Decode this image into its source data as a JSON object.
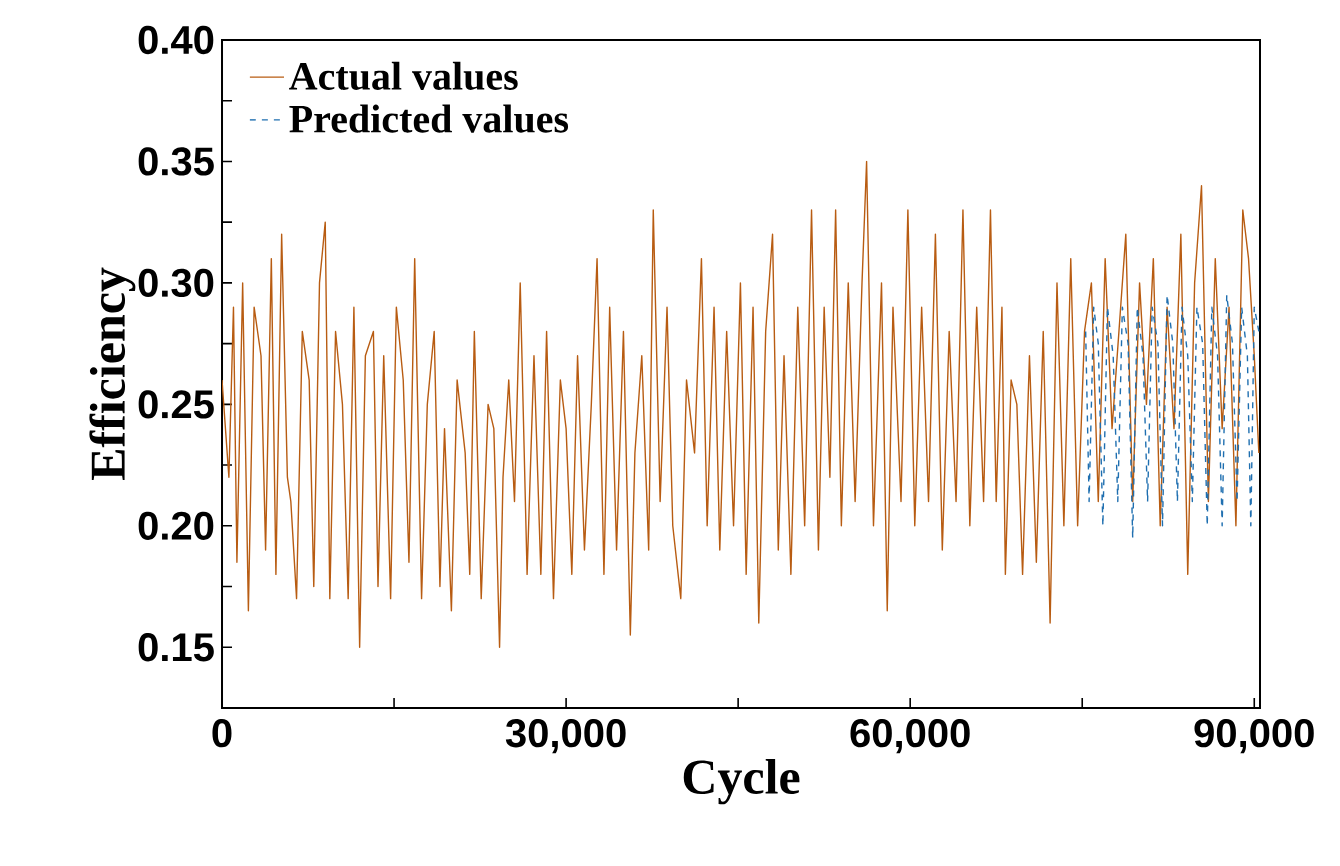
{
  "chart_data": {
    "type": "line",
    "xlabel": "Cycle",
    "ylabel": "Efficiency",
    "xlim": [
      0,
      90500
    ],
    "ylim": [
      0.125,
      0.4
    ],
    "xticks": [
      {
        "value": 0,
        "label": "0"
      },
      {
        "value": 15000,
        "label": null
      },
      {
        "value": 30000,
        "label": "30,000"
      },
      {
        "value": 45000,
        "label": null
      },
      {
        "value": 60000,
        "label": "60,000"
      },
      {
        "value": 75000,
        "label": null
      },
      {
        "value": 90000,
        "label": "90,000"
      }
    ],
    "yticks": [
      0.15,
      {
        "value": 0.175,
        "label": null
      },
      {
        "value": 0.2,
        "label": "0.20"
      },
      {
        "value": 0.225,
        "label": null
      },
      0.25,
      {
        "value": 0.275,
        "label": null
      },
      {
        "value": 0.3,
        "label": "0.30"
      },
      {
        "value": 0.325,
        "label": null
      },
      0.35,
      {
        "value": 0.375,
        "label": null
      },
      {
        "value": 0.4,
        "label": "0.40"
      }
    ],
    "legend": "top left",
    "series": [
      {
        "name": "Actual values",
        "color": "#b85c12",
        "line_style": "solid",
        "x": [
          0,
          600,
          1000,
          1300,
          1800,
          2300,
          2800,
          3400,
          3800,
          4300,
          4700,
          5200,
          5700,
          6000,
          6500,
          7000,
          7600,
          8000,
          8500,
          9000,
          9400,
          9900,
          10500,
          11000,
          11500,
          12000,
          12500,
          13200,
          13600,
          14100,
          14700,
          15200,
          15800,
          16300,
          16800,
          17400,
          17900,
          18500,
          19000,
          19400,
          20000,
          20500,
          21200,
          21600,
          22000,
          22600,
          23200,
          23700,
          24200,
          24500,
          25000,
          25500,
          26000,
          26600,
          27200,
          27800,
          28300,
          28900,
          29500,
          30000,
          30500,
          31000,
          31600,
          32200,
          32700,
          33300,
          33800,
          34400,
          35000,
          35600,
          36000,
          36600,
          37200,
          37600,
          38200,
          38800,
          39300,
          40000,
          40500,
          41200,
          41800,
          42300,
          42900,
          43400,
          44000,
          44600,
          45200,
          45700,
          46300,
          46800,
          47400,
          48000,
          48500,
          49000,
          49600,
          50200,
          50800,
          51400,
          52000,
          52500,
          53000,
          53500,
          54000,
          54600,
          55200,
          55800,
          56200,
          56800,
          57500,
          58000,
          58500,
          59200,
          59800,
          60400,
          61000,
          61600,
          62200,
          62800,
          63400,
          64000,
          64600,
          65200,
          65800,
          66400,
          67000,
          67500,
          68000,
          68300,
          68800,
          69300,
          69800,
          70400,
          71000,
          71600,
          72200,
          72800,
          73400,
          74000,
          74600,
          75200,
          75800,
          76400,
          77000,
          77600,
          78200,
          78800,
          79400,
          80000,
          80600,
          81200,
          81800,
          82400,
          83000,
          83600,
          84200,
          84800,
          85400,
          86000,
          86600,
          87200,
          87800,
          88400,
          89000,
          89500,
          90000,
          90400
        ],
        "values": [
          0.26,
          0.22,
          0.29,
          0.185,
          0.3,
          0.165,
          0.29,
          0.27,
          0.19,
          0.31,
          0.18,
          0.32,
          0.22,
          0.21,
          0.17,
          0.28,
          0.26,
          0.175,
          0.3,
          0.325,
          0.17,
          0.28,
          0.25,
          0.17,
          0.29,
          0.15,
          0.27,
          0.28,
          0.175,
          0.27,
          0.17,
          0.29,
          0.26,
          0.185,
          0.31,
          0.17,
          0.25,
          0.28,
          0.175,
          0.24,
          0.165,
          0.26,
          0.23,
          0.18,
          0.28,
          0.17,
          0.25,
          0.24,
          0.15,
          0.22,
          0.26,
          0.21,
          0.3,
          0.18,
          0.27,
          0.18,
          0.28,
          0.17,
          0.26,
          0.24,
          0.18,
          0.27,
          0.19,
          0.25,
          0.31,
          0.18,
          0.29,
          0.19,
          0.28,
          0.155,
          0.23,
          0.27,
          0.19,
          0.33,
          0.21,
          0.29,
          0.2,
          0.17,
          0.26,
          0.23,
          0.31,
          0.2,
          0.29,
          0.19,
          0.28,
          0.2,
          0.3,
          0.18,
          0.29,
          0.16,
          0.28,
          0.32,
          0.19,
          0.27,
          0.18,
          0.29,
          0.2,
          0.33,
          0.19,
          0.29,
          0.22,
          0.33,
          0.2,
          0.3,
          0.21,
          0.3,
          0.35,
          0.2,
          0.3,
          0.165,
          0.29,
          0.21,
          0.33,
          0.2,
          0.29,
          0.21,
          0.32,
          0.19,
          0.28,
          0.21,
          0.33,
          0.2,
          0.29,
          0.21,
          0.33,
          0.21,
          0.29,
          0.18,
          0.26,
          0.25,
          0.18,
          0.27,
          0.185,
          0.28,
          0.16,
          0.3,
          0.2,
          0.31,
          0.2,
          0.28,
          0.3,
          0.21,
          0.31,
          0.24,
          0.28,
          0.32,
          0.21,
          0.3,
          0.25,
          0.31,
          0.2,
          0.29,
          0.24,
          0.32,
          0.18,
          0.3,
          0.34,
          0.21,
          0.31,
          0.24,
          0.29,
          0.2,
          0.33,
          0.31,
          0.27,
          0.23
        ]
      },
      {
        "name": "Predicted values",
        "color": "#1f6fb0",
        "line_style": "dashed",
        "x": [
          75300,
          75600,
          76000,
          76400,
          76800,
          77200,
          77700,
          78100,
          78500,
          79000,
          79400,
          79800,
          80300,
          80700,
          81100,
          81600,
          82000,
          82400,
          82900,
          83300,
          83700,
          84200,
          84600,
          85000,
          85500,
          85900,
          86300,
          86800,
          87200,
          87600,
          88100,
          88500,
          88900,
          89400,
          89700,
          90000,
          90400
        ],
        "values": [
          0.28,
          0.21,
          0.29,
          0.275,
          0.2,
          0.29,
          0.27,
          0.21,
          0.29,
          0.275,
          0.195,
          0.29,
          0.27,
          0.21,
          0.29,
          0.275,
          0.2,
          0.295,
          0.275,
          0.21,
          0.29,
          0.27,
          0.21,
          0.29,
          0.275,
          0.2,
          0.29,
          0.27,
          0.2,
          0.295,
          0.275,
          0.21,
          0.29,
          0.27,
          0.2,
          0.29,
          0.28
        ]
      }
    ]
  }
}
